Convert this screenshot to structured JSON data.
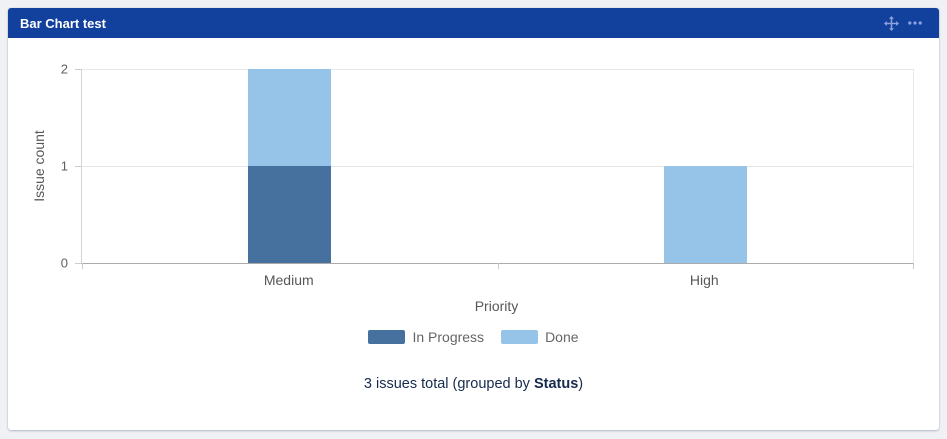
{
  "page": {
    "background": "#F0F1F4"
  },
  "gadget": {
    "title": "Bar Chart test",
    "header_color": "#12409D",
    "icon_color": "#8BA2DC",
    "icons": {
      "move": "move-icon",
      "more": "ellipsis-icon"
    }
  },
  "chart_data": {
    "type": "bar",
    "stacked": true,
    "categories": [
      "Medium",
      "High"
    ],
    "series": [
      {
        "name": "In Progress",
        "color": "#46719F",
        "values": [
          1,
          0
        ]
      },
      {
        "name": "Done",
        "color": "#96C4E8",
        "values": [
          1,
          1
        ]
      }
    ],
    "title": "",
    "xlabel": "Priority",
    "ylabel": "Issue count",
    "yticks": [
      0,
      1,
      2
    ],
    "ylim": [
      0,
      2
    ],
    "grid": true,
    "legend_position": "bottom"
  },
  "footer": {
    "prefix": "3 issues total (grouped by ",
    "group_by": "Status",
    "suffix": ")"
  }
}
